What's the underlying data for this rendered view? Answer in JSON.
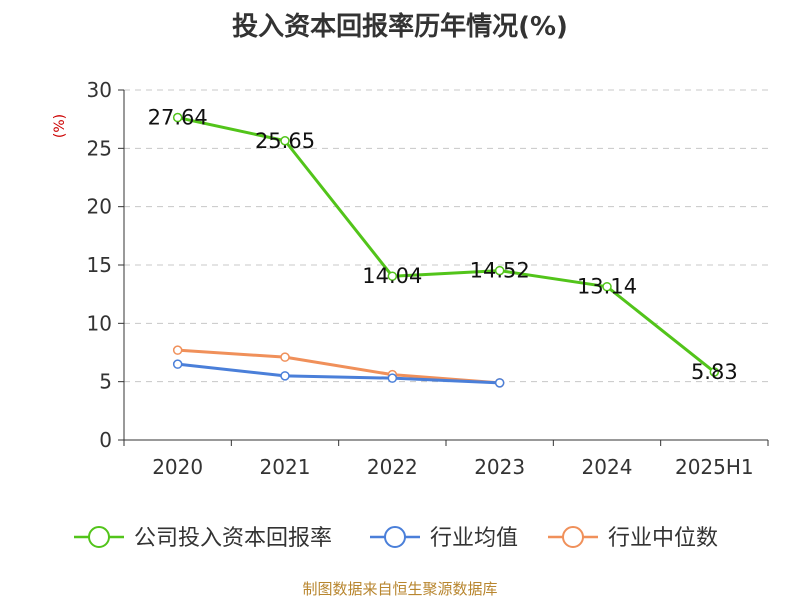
{
  "title": "投入资本回报率历年情况(%)",
  "footer": "制图数据来自恒生聚源数据库",
  "chart_data": {
    "type": "line",
    "ylabel": "(%)",
    "ylim": [
      0,
      30
    ],
    "yticks": [
      0,
      5,
      10,
      15,
      20,
      25,
      30
    ],
    "categories": [
      "2020",
      "2021",
      "2022",
      "2023",
      "2024",
      "2025H1"
    ],
    "grid": true,
    "legend_position": "bottom",
    "series": [
      {
        "name": "公司投入资本回报率",
        "color": "#52c41a",
        "values": [
          27.64,
          25.65,
          14.04,
          14.52,
          13.14,
          5.83
        ],
        "labels": [
          "27.64",
          "25.65",
          "14.04",
          "14.52",
          "13.14",
          "5.83"
        ],
        "show_labels": true
      },
      {
        "name": "行业均值",
        "color": "#4a7fd9",
        "values": [
          6.5,
          5.5,
          5.3,
          4.9,
          null,
          null
        ],
        "show_labels": false
      },
      {
        "name": "行业中位数",
        "color": "#f0905a",
        "values": [
          7.7,
          7.1,
          5.6,
          4.9,
          null,
          null
        ],
        "show_labels": false
      }
    ]
  }
}
